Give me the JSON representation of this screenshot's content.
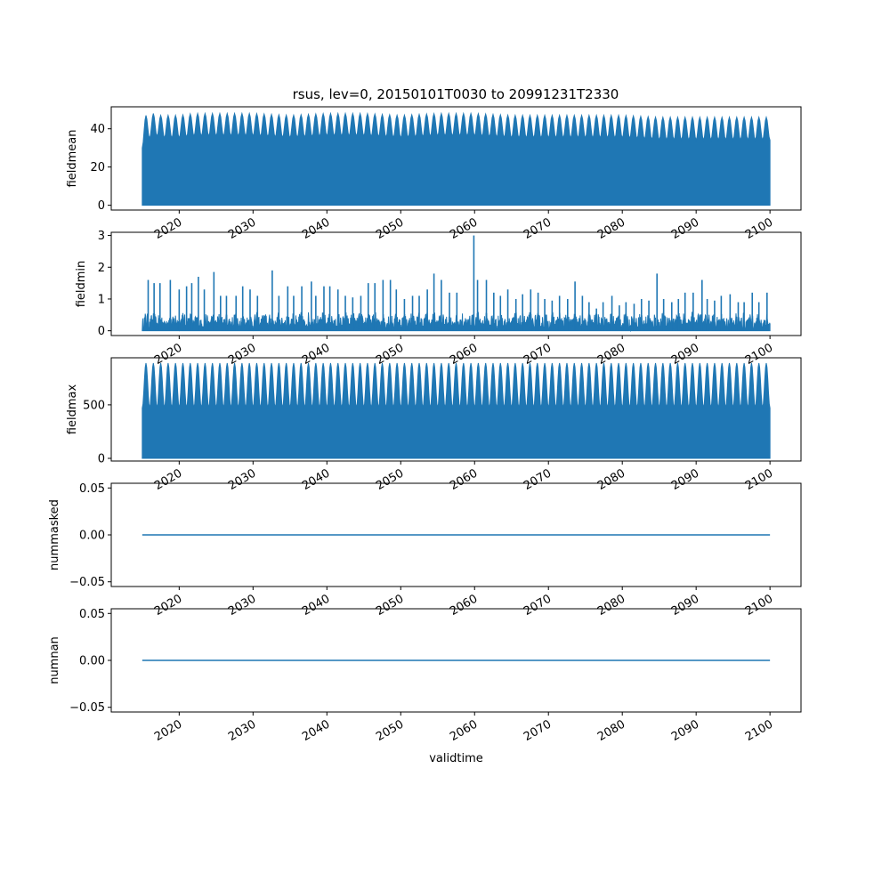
{
  "figure_title": "rsus, lev=0, 20150101T0030 to 20991231T2330",
  "line_color": "#1f77b4",
  "chart_data": [
    {
      "type": "line",
      "ylabel": "fieldmean",
      "x_range": [
        2015.0,
        2100.0
      ],
      "ylim": [
        -2.5,
        51.5
      ],
      "yticks": [
        "0",
        "20",
        "40"
      ],
      "ytick_values": [
        0,
        20,
        40
      ],
      "xticks": [
        "2020",
        "2030",
        "2040",
        "2050",
        "2060",
        "2070",
        "2080",
        "2090",
        "2100"
      ],
      "xtick_values": [
        2020,
        2030,
        2040,
        2050,
        2060,
        2070,
        2080,
        2090,
        2100
      ],
      "series": [
        {
          "style": "daily cycle, envelope",
          "x": [
            2015.0,
            2015.5,
            2016.0,
            2016.5,
            2017.0,
            2018.0,
            2020.0,
            2022.0,
            2025.0,
            2030.0,
            2035.0,
            2040.0,
            2045.0,
            2050.0,
            2055.0,
            2060.0,
            2065.0,
            2070.0,
            2075.0,
            2080.0,
            2085.0,
            2090.0,
            2095.0,
            2100.0
          ],
          "min": [
            0,
            0,
            0,
            0,
            0,
            0,
            0,
            0,
            0,
            0,
            0,
            0,
            0,
            0,
            0,
            0,
            0,
            0,
            0,
            0,
            0,
            0,
            0,
            0
          ],
          "max_peak": [
            46,
            47,
            47,
            48,
            47,
            47,
            47,
            48,
            48,
            48,
            47,
            48,
            48,
            47,
            48,
            48,
            47,
            47,
            47,
            47,
            46,
            46,
            46,
            46
          ],
          "max_trough": [
            30,
            33,
            35,
            36,
            36,
            35,
            35,
            36,
            36,
            36,
            35,
            36,
            36,
            35,
            36,
            36,
            35,
            35,
            35,
            35,
            34,
            34,
            34,
            34
          ]
        }
      ]
    },
    {
      "type": "line",
      "ylabel": "fieldmin",
      "x_range": [
        2015.0,
        2100.0
      ],
      "ylim": [
        -0.15,
        3.1
      ],
      "yticks": [
        "0",
        "1",
        "2",
        "3"
      ],
      "ytick_values": [
        0,
        1,
        2,
        3
      ],
      "xticks": [
        "2020",
        "2030",
        "2040",
        "2050",
        "2060",
        "2070",
        "2080",
        "2090",
        "2100"
      ],
      "xtick_values": [
        2020,
        2030,
        2040,
        2050,
        2060,
        2070,
        2080,
        2090,
        2100
      ],
      "series": [
        {
          "style": "noisy base with spikes",
          "base_max": 0.6,
          "spikes": [
            [
              2015.8,
              1.6
            ],
            [
              2016.6,
              1.5
            ],
            [
              2017.4,
              1.5
            ],
            [
              2018.8,
              1.6
            ],
            [
              2020.0,
              1.3
            ],
            [
              2021.0,
              1.4
            ],
            [
              2021.7,
              1.5
            ],
            [
              2022.6,
              1.7
            ],
            [
              2023.4,
              1.3
            ],
            [
              2024.7,
              1.85
            ],
            [
              2025.6,
              1.1
            ],
            [
              2026.4,
              1.1
            ],
            [
              2027.7,
              1.1
            ],
            [
              2028.6,
              1.4
            ],
            [
              2029.6,
              1.3
            ],
            [
              2030.6,
              1.1
            ],
            [
              2032.6,
              1.9
            ],
            [
              2033.5,
              1.1
            ],
            [
              2034.7,
              1.4
            ],
            [
              2035.5,
              1.1
            ],
            [
              2036.6,
              1.4
            ],
            [
              2037.9,
              1.55
            ],
            [
              2038.5,
              1.1
            ],
            [
              2039.6,
              1.4
            ],
            [
              2040.4,
              1.4
            ],
            [
              2041.5,
              1.3
            ],
            [
              2042.5,
              1.1
            ],
            [
              2043.5,
              1.05
            ],
            [
              2044.6,
              1.1
            ],
            [
              2045.6,
              1.5
            ],
            [
              2046.5,
              1.5
            ],
            [
              2047.6,
              1.6
            ],
            [
              2048.6,
              1.6
            ],
            [
              2049.4,
              1.3
            ],
            [
              2050.5,
              1.0
            ],
            [
              2051.6,
              1.1
            ],
            [
              2052.5,
              1.1
            ],
            [
              2053.6,
              1.3
            ],
            [
              2054.5,
              1.8
            ],
            [
              2055.5,
              1.6
            ],
            [
              2056.6,
              1.2
            ],
            [
              2057.6,
              1.2
            ],
            [
              2059.9,
              3.0
            ],
            [
              2060.4,
              1.6
            ],
            [
              2061.6,
              1.6
            ],
            [
              2062.6,
              1.2
            ],
            [
              2063.5,
              1.1
            ],
            [
              2064.5,
              1.3
            ],
            [
              2065.6,
              1.0
            ],
            [
              2066.5,
              1.15
            ],
            [
              2067.6,
              1.3
            ],
            [
              2068.6,
              1.2
            ],
            [
              2069.5,
              1.0
            ],
            [
              2070.5,
              0.95
            ],
            [
              2071.5,
              1.1
            ],
            [
              2072.6,
              1.0
            ],
            [
              2073.6,
              1.55
            ],
            [
              2074.6,
              1.1
            ],
            [
              2075.5,
              0.9
            ],
            [
              2076.5,
              0.7
            ],
            [
              2077.4,
              0.9
            ],
            [
              2078.6,
              1.1
            ],
            [
              2079.6,
              0.8
            ],
            [
              2080.5,
              0.9
            ],
            [
              2081.6,
              0.85
            ],
            [
              2082.6,
              1.0
            ],
            [
              2083.6,
              0.95
            ],
            [
              2084.7,
              1.8
            ],
            [
              2085.6,
              1.0
            ],
            [
              2086.7,
              0.9
            ],
            [
              2087.6,
              1.0
            ],
            [
              2088.5,
              1.2
            ],
            [
              2089.6,
              1.2
            ],
            [
              2090.8,
              1.6
            ],
            [
              2091.5,
              1.0
            ],
            [
              2092.5,
              0.95
            ],
            [
              2093.4,
              1.1
            ],
            [
              2094.6,
              1.15
            ],
            [
              2095.7,
              0.9
            ],
            [
              2096.5,
              0.9
            ],
            [
              2097.6,
              1.2
            ],
            [
              2098.5,
              0.9
            ],
            [
              2099.6,
              1.2
            ]
          ]
        }
      ]
    },
    {
      "type": "line",
      "ylabel": "fieldmax",
      "x_range": [
        2015.0,
        2100.0
      ],
      "ylim": [
        -25,
        940
      ],
      "yticks": [
        "0",
        "500"
      ],
      "ytick_values": [
        0,
        500
      ],
      "xticks": [
        "2020",
        "2030",
        "2040",
        "2050",
        "2060",
        "2070",
        "2080",
        "2090",
        "2100"
      ],
      "xtick_values": [
        2020,
        2030,
        2040,
        2050,
        2060,
        2070,
        2080,
        2090,
        2100
      ],
      "series": [
        {
          "style": "daily cycle, annual envelope",
          "peak": 890,
          "trough": 470,
          "min": 0
        }
      ]
    },
    {
      "type": "line",
      "ylabel": "nummasked",
      "x_range": [
        2015.0,
        2100.0
      ],
      "ylim": [
        -0.055,
        0.055
      ],
      "yticks": [
        "−0.05",
        "0.00",
        "0.05"
      ],
      "ytick_values": [
        -0.05,
        0.0,
        0.05
      ],
      "xticks": [
        "2020",
        "2030",
        "2040",
        "2050",
        "2060",
        "2070",
        "2080",
        "2090",
        "2100"
      ],
      "xtick_values": [
        2020,
        2030,
        2040,
        2050,
        2060,
        2070,
        2080,
        2090,
        2100
      ],
      "series": [
        {
          "x": [
            2015.0,
            2100.0
          ],
          "y": [
            0.0,
            0.0
          ]
        }
      ]
    },
    {
      "type": "line",
      "ylabel": "numnan",
      "xlabel": "validtime",
      "x_range": [
        2015.0,
        2100.0
      ],
      "ylim": [
        -0.055,
        0.055
      ],
      "yticks": [
        "−0.05",
        "0.00",
        "0.05"
      ],
      "ytick_values": [
        -0.05,
        0.0,
        0.05
      ],
      "xticks": [
        "2020",
        "2030",
        "2040",
        "2050",
        "2060",
        "2070",
        "2080",
        "2090",
        "2100"
      ],
      "xtick_values": [
        2020,
        2030,
        2040,
        2050,
        2060,
        2070,
        2080,
        2090,
        2100
      ],
      "series": [
        {
          "x": [
            2015.0,
            2100.0
          ],
          "y": [
            0.0,
            0.0
          ]
        }
      ]
    }
  ]
}
